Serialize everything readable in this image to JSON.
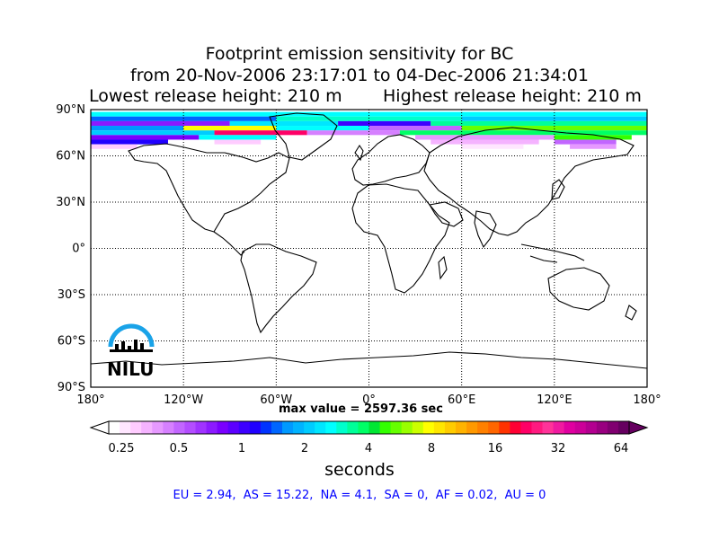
{
  "title": {
    "line1": "Footprint emission sensitivity for BC",
    "line2": "from 20-Nov-2006 23:17:01 to 04-Dec-2006 21:34:01",
    "line3_left": "Lowest release height: 210 m",
    "line3_right": "Highest release height: 210 m"
  },
  "map": {
    "lat_ticks": [
      "90°N",
      "60°N",
      "30°N",
      "0°",
      "30°S",
      "60°S",
      "90°S"
    ],
    "lon_ticks": [
      "180°",
      "120°W",
      "60°W",
      "0°",
      "60°E",
      "120°E",
      "180°"
    ],
    "grid": true,
    "projection": "cylindrical",
    "lon_range": [
      -180,
      180
    ],
    "lat_range": [
      -90,
      90
    ]
  },
  "logo": {
    "text": "NILU"
  },
  "max_value": "max value = 2597.36 sec",
  "colorbar": {
    "ticks": [
      "0.25",
      "0.5",
      "1",
      "2",
      "4",
      "8",
      "16",
      "32",
      "64"
    ],
    "label": "seconds",
    "colors": [
      "#ffffff",
      "#ffe6ff",
      "#ffccff",
      "#f5b3ff",
      "#e699ff",
      "#d680ff",
      "#c266ff",
      "#b34dff",
      "#a033ff",
      "#8c1aff",
      "#7a00ff",
      "#5c00ff",
      "#3d00ff",
      "#1f00ff",
      "#0033ff",
      "#0066ff",
      "#0099ff",
      "#00b3ff",
      "#00ccff",
      "#00e6ff",
      "#00ffff",
      "#00ffcc",
      "#00ff99",
      "#00ff66",
      "#00e633",
      "#33ff00",
      "#66ff00",
      "#99ff00",
      "#ccff00",
      "#ffff00",
      "#ffe600",
      "#ffcc00",
      "#ffb300",
      "#ff9900",
      "#ff8000",
      "#ff6600",
      "#ff3300",
      "#ff0033",
      "#ff0066",
      "#ff1a80",
      "#ff3399",
      "#f01aa0",
      "#e000a0",
      "#cc0099",
      "#b30090",
      "#990080",
      "#800070",
      "#660060"
    ]
  },
  "region_values": "EU = 2.94,  AS = 15.22,  NA = 4.1,  SA = 0,  AF = 0.02,  AU = 0",
  "sensitivity_field": [
    {
      "lat": 87,
      "lon_from": -180,
      "lon_to": 180,
      "color": "#00ffff"
    },
    {
      "lat": 84,
      "lon_from": -180,
      "lon_to": -60,
      "color": "#0066ff"
    },
    {
      "lat": 84,
      "lon_from": -60,
      "lon_to": 60,
      "color": "#00ffcc"
    },
    {
      "lat": 84,
      "lon_from": 60,
      "lon_to": 180,
      "color": "#00ccff"
    },
    {
      "lat": 81,
      "lon_from": -180,
      "lon_to": -90,
      "color": "#8c1aff"
    },
    {
      "lat": 81,
      "lon_from": -90,
      "lon_to": -20,
      "color": "#00e6ff"
    },
    {
      "lat": 81,
      "lon_from": -20,
      "lon_to": 40,
      "color": "#3d00ff"
    },
    {
      "lat": 81,
      "lon_from": 40,
      "lon_to": 180,
      "color": "#00ff99"
    },
    {
      "lat": 78,
      "lon_from": -180,
      "lon_to": -120,
      "color": "#0099ff"
    },
    {
      "lat": 78,
      "lon_from": -120,
      "lon_to": -60,
      "color": "#ffff00"
    },
    {
      "lat": 78,
      "lon_from": -60,
      "lon_to": 0,
      "color": "#00ffff"
    },
    {
      "lat": 78,
      "lon_from": 0,
      "lon_to": 60,
      "color": "#c266ff"
    },
    {
      "lat": 78,
      "lon_from": 60,
      "lon_to": 180,
      "color": "#66ff00"
    },
    {
      "lat": 75,
      "lon_from": -180,
      "lon_to": -100,
      "color": "#00ccff"
    },
    {
      "lat": 75,
      "lon_from": -100,
      "lon_to": -40,
      "color": "#ff0066"
    },
    {
      "lat": 75,
      "lon_from": -40,
      "lon_to": 20,
      "color": "#d680ff"
    },
    {
      "lat": 75,
      "lon_from": 20,
      "lon_to": 180,
      "color": "#00ff66"
    },
    {
      "lat": 72,
      "lon_from": -180,
      "lon_to": -110,
      "color": "#7a00ff"
    },
    {
      "lat": 72,
      "lon_from": -110,
      "lon_to": -60,
      "color": "#00ffff"
    },
    {
      "lat": 72,
      "lon_from": 30,
      "lon_to": 120,
      "color": "#e699ff"
    },
    {
      "lat": 72,
      "lon_from": 120,
      "lon_to": 170,
      "color": "#33ff00"
    },
    {
      "lat": 69,
      "lon_from": -180,
      "lon_to": -130,
      "color": "#1f00ff"
    },
    {
      "lat": 69,
      "lon_from": -100,
      "lon_to": -70,
      "color": "#ffccff"
    },
    {
      "lat": 69,
      "lon_from": 40,
      "lon_to": 110,
      "color": "#f5b3ff"
    },
    {
      "lat": 69,
      "lon_from": 120,
      "lon_to": 160,
      "color": "#c266ff"
    },
    {
      "lat": 66,
      "lon_from": -180,
      "lon_to": -150,
      "color": "#ffccff"
    },
    {
      "lat": 66,
      "lon_from": 60,
      "lon_to": 100,
      "color": "#ffe6ff"
    },
    {
      "lat": 66,
      "lon_from": 130,
      "lon_to": 160,
      "color": "#e699ff"
    }
  ]
}
